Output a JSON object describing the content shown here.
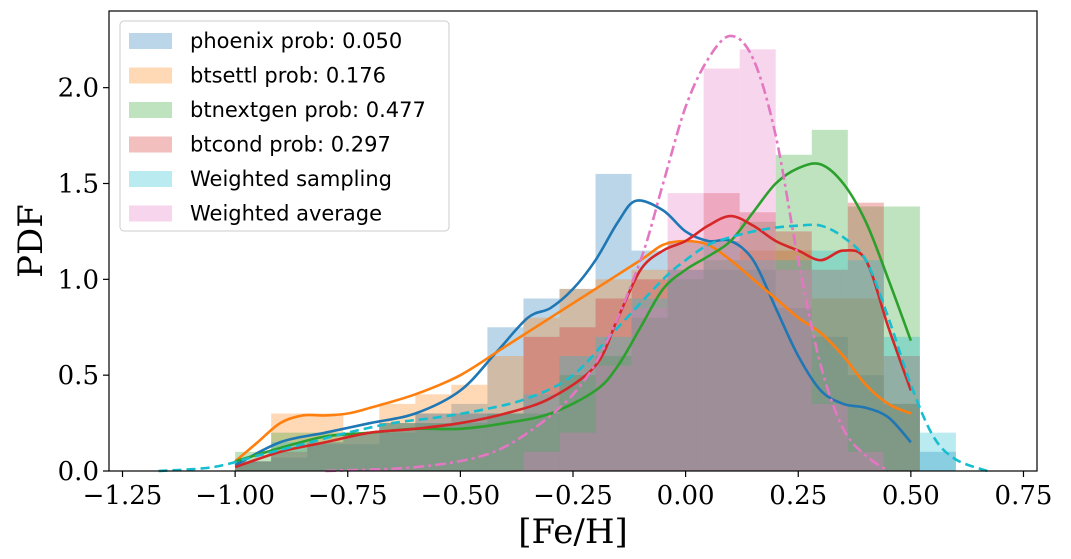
{
  "chart_data": {
    "type": "bar",
    "title": "",
    "xlabel": "[Fe/H]",
    "ylabel": "PDF",
    "xlim": [
      -1.28,
      0.78
    ],
    "ylim": [
      0.0,
      2.4
    ],
    "xticks": [
      -1.25,
      -1.0,
      -0.75,
      -0.5,
      -0.25,
      0.0,
      0.25,
      0.5,
      0.75
    ],
    "xtick_labels": [
      "−1.25",
      "−1.00",
      "−0.75",
      "−0.50",
      "−0.25",
      "0.00",
      "0.25",
      "0.50",
      "0.75"
    ],
    "yticks": [
      0.0,
      0.5,
      1.0,
      1.5,
      2.0
    ],
    "ytick_labels": [
      "0.0",
      "0.5",
      "1.0",
      "1.5",
      "2.0"
    ],
    "grid": false,
    "legend_position": "top-left",
    "bin_width": 0.08,
    "series": [
      {
        "name": "phoenix prob: 0.050",
        "color": "#1f77b4",
        "bins": [
          [
            -1.0,
            0.05
          ],
          [
            -0.92,
            0.07
          ],
          [
            -0.84,
            0.14
          ],
          [
            -0.76,
            0.14
          ],
          [
            -0.68,
            0.2
          ],
          [
            -0.6,
            0.25
          ],
          [
            -0.52,
            0.35
          ],
          [
            -0.44,
            0.75
          ],
          [
            -0.36,
            0.9
          ],
          [
            -0.28,
            0.95
          ],
          [
            -0.2,
            1.55
          ],
          [
            -0.12,
            1.15
          ],
          [
            -0.04,
            1.2
          ],
          [
            0.04,
            1.05
          ],
          [
            0.12,
            1.05
          ],
          [
            0.2,
            0.85
          ],
          [
            0.28,
            0.7
          ],
          [
            0.36,
            0.5
          ],
          [
            0.44,
            0.35
          ],
          [
            0.52,
            0.1
          ]
        ],
        "kde": [
          [
            -1.0,
            0.03
          ],
          [
            -0.9,
            0.15
          ],
          [
            -0.8,
            0.2
          ],
          [
            -0.7,
            0.25
          ],
          [
            -0.6,
            0.3
          ],
          [
            -0.5,
            0.42
          ],
          [
            -0.42,
            0.62
          ],
          [
            -0.35,
            0.8
          ],
          [
            -0.3,
            0.85
          ],
          [
            -0.25,
            0.95
          ],
          [
            -0.2,
            1.1
          ],
          [
            -0.15,
            1.3
          ],
          [
            -0.11,
            1.41
          ],
          [
            -0.05,
            1.36
          ],
          [
            0.0,
            1.25
          ],
          [
            0.05,
            1.2
          ],
          [
            0.1,
            1.2
          ],
          [
            0.15,
            1.1
          ],
          [
            0.2,
            0.85
          ],
          [
            0.25,
            0.6
          ],
          [
            0.3,
            0.42
          ],
          [
            0.35,
            0.35
          ],
          [
            0.4,
            0.33
          ],
          [
            0.45,
            0.28
          ],
          [
            0.5,
            0.15
          ]
        ]
      },
      {
        "name": "btsettl prob: 0.176",
        "color": "#ff7f0e",
        "bins": [
          [
            -1.0,
            0.05
          ],
          [
            -0.92,
            0.3
          ],
          [
            -0.84,
            0.3
          ],
          [
            -0.76,
            0.2
          ],
          [
            -0.68,
            0.35
          ],
          [
            -0.6,
            0.4
          ],
          [
            -0.52,
            0.45
          ],
          [
            -0.44,
            0.6
          ],
          [
            -0.36,
            0.8
          ],
          [
            -0.28,
            0.95
          ],
          [
            -0.2,
            1.0
          ],
          [
            -0.12,
            1.05
          ],
          [
            -0.04,
            1.2
          ],
          [
            0.04,
            1.2
          ],
          [
            0.12,
            1.15
          ],
          [
            0.2,
            1.15
          ],
          [
            0.28,
            0.9
          ],
          [
            0.36,
            0.9
          ],
          [
            0.44,
            0.35
          ]
        ],
        "kde": [
          [
            -1.0,
            0.05
          ],
          [
            -0.95,
            0.15
          ],
          [
            -0.9,
            0.25
          ],
          [
            -0.85,
            0.29
          ],
          [
            -0.8,
            0.29
          ],
          [
            -0.75,
            0.3
          ],
          [
            -0.7,
            0.33
          ],
          [
            -0.6,
            0.4
          ],
          [
            -0.5,
            0.5
          ],
          [
            -0.4,
            0.65
          ],
          [
            -0.3,
            0.8
          ],
          [
            -0.2,
            0.95
          ],
          [
            -0.1,
            1.1
          ],
          [
            -0.05,
            1.18
          ],
          [
            0.0,
            1.2
          ],
          [
            0.05,
            1.18
          ],
          [
            0.1,
            1.1
          ],
          [
            0.15,
            1.0
          ],
          [
            0.2,
            0.9
          ],
          [
            0.25,
            0.8
          ],
          [
            0.3,
            0.72
          ],
          [
            0.35,
            0.6
          ],
          [
            0.4,
            0.45
          ],
          [
            0.45,
            0.35
          ],
          [
            0.5,
            0.3
          ]
        ]
      },
      {
        "name": "btnextgen prob: 0.477",
        "color": "#2ca02c",
        "bins": [
          [
            -1.0,
            0.1
          ],
          [
            -0.92,
            0.2
          ],
          [
            -0.84,
            0.2
          ],
          [
            -0.76,
            0.2
          ],
          [
            -0.68,
            0.25
          ],
          [
            -0.6,
            0.25
          ],
          [
            -0.52,
            0.25
          ],
          [
            -0.44,
            0.3
          ],
          [
            -0.36,
            0.3
          ],
          [
            -0.28,
            0.5
          ],
          [
            -0.2,
            0.6
          ],
          [
            -0.12,
            0.8
          ],
          [
            -0.04,
            1.0
          ],
          [
            0.04,
            1.1
          ],
          [
            0.12,
            1.3
          ],
          [
            0.2,
            1.65
          ],
          [
            0.28,
            1.78
          ],
          [
            0.36,
            1.38
          ],
          [
            0.44,
            1.38
          ]
        ],
        "kde": [
          [
            -1.0,
            0.05
          ],
          [
            -0.9,
            0.12
          ],
          [
            -0.8,
            0.18
          ],
          [
            -0.7,
            0.2
          ],
          [
            -0.6,
            0.22
          ],
          [
            -0.5,
            0.22
          ],
          [
            -0.4,
            0.25
          ],
          [
            -0.3,
            0.3
          ],
          [
            -0.2,
            0.42
          ],
          [
            -0.15,
            0.55
          ],
          [
            -0.1,
            0.75
          ],
          [
            -0.05,
            0.95
          ],
          [
            0.0,
            1.05
          ],
          [
            0.05,
            1.12
          ],
          [
            0.1,
            1.2
          ],
          [
            0.15,
            1.35
          ],
          [
            0.2,
            1.5
          ],
          [
            0.25,
            1.58
          ],
          [
            0.3,
            1.6
          ],
          [
            0.35,
            1.5
          ],
          [
            0.4,
            1.3
          ],
          [
            0.45,
            1.0
          ],
          [
            0.5,
            0.68
          ]
        ]
      },
      {
        "name": "btcond prob: 0.297",
        "color": "#d62728",
        "bins": [
          [
            -1.0,
            0.05
          ],
          [
            -0.92,
            0.1
          ],
          [
            -0.84,
            0.15
          ],
          [
            -0.76,
            0.2
          ],
          [
            -0.68,
            0.25
          ],
          [
            -0.6,
            0.3
          ],
          [
            -0.52,
            0.3
          ],
          [
            -0.44,
            0.3
          ],
          [
            -0.36,
            0.7
          ],
          [
            -0.28,
            0.75
          ],
          [
            -0.2,
            0.9
          ],
          [
            -0.12,
            1.0
          ],
          [
            -0.04,
            1.05
          ],
          [
            0.04,
            1.45
          ],
          [
            0.12,
            1.35
          ],
          [
            0.2,
            1.25
          ],
          [
            0.28,
            1.05
          ],
          [
            0.36,
            1.4
          ],
          [
            0.44,
            0.6
          ]
        ],
        "kde": [
          [
            -1.0,
            0.02
          ],
          [
            -0.9,
            0.1
          ],
          [
            -0.8,
            0.15
          ],
          [
            -0.7,
            0.2
          ],
          [
            -0.6,
            0.22
          ],
          [
            -0.5,
            0.25
          ],
          [
            -0.4,
            0.3
          ],
          [
            -0.3,
            0.38
          ],
          [
            -0.2,
            0.55
          ],
          [
            -0.15,
            0.8
          ],
          [
            -0.1,
            1.05
          ],
          [
            -0.05,
            1.15
          ],
          [
            0.0,
            1.2
          ],
          [
            0.05,
            1.28
          ],
          [
            0.1,
            1.33
          ],
          [
            0.15,
            1.28
          ],
          [
            0.2,
            1.2
          ],
          [
            0.25,
            1.15
          ],
          [
            0.3,
            1.1
          ],
          [
            0.35,
            1.15
          ],
          [
            0.4,
            1.1
          ],
          [
            0.45,
            0.75
          ],
          [
            0.5,
            0.42
          ]
        ]
      },
      {
        "name": "Weighted sampling",
        "color": "#17becf",
        "bins": [
          [
            -1.0,
            0.05
          ],
          [
            -0.92,
            0.15
          ],
          [
            -0.84,
            0.15
          ],
          [
            -0.76,
            0.2
          ],
          [
            -0.68,
            0.25
          ],
          [
            -0.6,
            0.3
          ],
          [
            -0.52,
            0.3
          ],
          [
            -0.44,
            0.3
          ],
          [
            -0.36,
            0.4
          ],
          [
            -0.28,
            0.6
          ],
          [
            -0.2,
            0.7
          ],
          [
            -0.12,
            0.9
          ],
          [
            -0.04,
            1.05
          ],
          [
            0.04,
            1.2
          ],
          [
            0.12,
            1.1
          ],
          [
            0.2,
            1.1
          ],
          [
            0.28,
            1.15
          ],
          [
            0.36,
            1.1
          ],
          [
            0.44,
            0.7
          ],
          [
            0.52,
            0.2
          ]
        ],
        "kde": [
          [
            -1.17,
            0.0
          ],
          [
            -1.05,
            0.02
          ],
          [
            -0.95,
            0.08
          ],
          [
            -0.85,
            0.14
          ],
          [
            -0.75,
            0.2
          ],
          [
            -0.65,
            0.25
          ],
          [
            -0.55,
            0.28
          ],
          [
            -0.45,
            0.32
          ],
          [
            -0.35,
            0.38
          ],
          [
            -0.25,
            0.5
          ],
          [
            -0.15,
            0.75
          ],
          [
            -0.05,
            1.0
          ],
          [
            0.0,
            1.1
          ],
          [
            0.05,
            1.18
          ],
          [
            0.1,
            1.22
          ],
          [
            0.15,
            1.25
          ],
          [
            0.2,
            1.27
          ],
          [
            0.25,
            1.28
          ],
          [
            0.3,
            1.28
          ],
          [
            0.35,
            1.22
          ],
          [
            0.4,
            1.1
          ],
          [
            0.45,
            0.8
          ],
          [
            0.5,
            0.45
          ],
          [
            0.55,
            0.18
          ],
          [
            0.6,
            0.06
          ],
          [
            0.67,
            0.0
          ]
        ]
      },
      {
        "name": "Weighted average",
        "color": "#e377c2",
        "bins": [
          [
            -0.36,
            0.1
          ],
          [
            -0.28,
            0.2
          ],
          [
            -0.2,
            0.55
          ],
          [
            -0.12,
            0.85
          ],
          [
            -0.04,
            1.45
          ],
          [
            0.04,
            2.1
          ],
          [
            0.12,
            2.2
          ],
          [
            0.2,
            1.05
          ],
          [
            0.28,
            0.35
          ],
          [
            0.36,
            0.1
          ]
        ],
        "kde": [
          [
            -0.8,
            0.0
          ],
          [
            -0.6,
            0.02
          ],
          [
            -0.45,
            0.08
          ],
          [
            -0.35,
            0.2
          ],
          [
            -0.25,
            0.4
          ],
          [
            -0.18,
            0.65
          ],
          [
            -0.1,
            1.1
          ],
          [
            -0.05,
            1.5
          ],
          [
            0.0,
            1.9
          ],
          [
            0.05,
            2.15
          ],
          [
            0.1,
            2.27
          ],
          [
            0.15,
            2.15
          ],
          [
            0.2,
            1.75
          ],
          [
            0.25,
            1.1
          ],
          [
            0.3,
            0.55
          ],
          [
            0.35,
            0.22
          ],
          [
            0.4,
            0.08
          ],
          [
            0.45,
            0.0
          ]
        ]
      }
    ]
  }
}
